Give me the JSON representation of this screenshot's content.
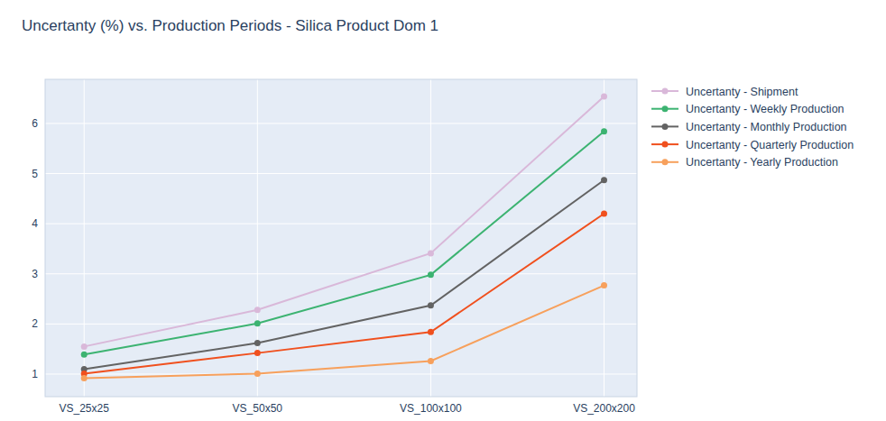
{
  "chart_data": {
    "type": "line",
    "title": "Uncertanty (%) vs. Production Periods - Silica Product Dom 1",
    "categories": [
      "VS_25x25",
      "VS_50x50",
      "VS_100x100",
      "VS_200x200"
    ],
    "series": [
      {
        "name": "Uncertanty - Shipment",
        "color": "#d9b8d9",
        "values": [
          1.55,
          2.28,
          3.41,
          6.54
        ]
      },
      {
        "name": "Uncertanty - Weekly Production",
        "color": "#3cb371",
        "values": [
          1.39,
          2.01,
          2.98,
          5.84
        ]
      },
      {
        "name": "Uncertanty - Monthly Production",
        "color": "#636363",
        "values": [
          1.1,
          1.62,
          2.37,
          4.87
        ]
      },
      {
        "name": "Uncertanty - Quarterly Production",
        "color": "#f0501e",
        "values": [
          1.01,
          1.42,
          1.84,
          4.2
        ]
      },
      {
        "name": "Uncertanty - Yearly Production",
        "color": "#f7a05c",
        "values": [
          0.92,
          1.01,
          1.26,
          2.77
        ]
      }
    ],
    "ylim": [
      0.55,
      6.88
    ],
    "yticks": [
      1,
      2,
      3,
      4,
      5,
      6
    ],
    "grid": true,
    "legend": "right",
    "marker": "circle",
    "line_style": "solid"
  }
}
